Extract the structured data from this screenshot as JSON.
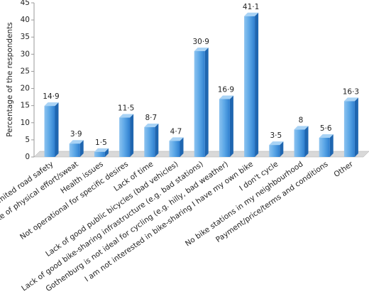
{
  "chart_data": {
    "type": "bar3d",
    "ylabel": "Percentage of the respondents",
    "categories": [
      "Limited road safety",
      "Dislike of physical effort/sweat",
      "Health issues",
      "Not operational for specific desires",
      "Lack of time",
      "Lack of good public bicycles (bad vehicles)",
      "Lack of good bike-sharing infrastructure (e.g. bad stations)",
      "Gothenburg is not ideal for cycling (e.g. hilly, bad weather)",
      "I am not interested in bike-sharing I have my own bike",
      "I don't cycle",
      "No bike stations in my neighbourhood",
      "Payment/price/terms and conditions",
      "Other"
    ],
    "values": [
      14.9,
      3.9,
      1.5,
      11.5,
      8.7,
      4.7,
      30.9,
      16.9,
      41.1,
      3.5,
      8,
      5.6,
      16.3
    ],
    "value_labels": [
      "14·9",
      "3·9",
      "1·5",
      "11·5",
      "8·7",
      "4·7",
      "30·9",
      "16·9",
      "41·1",
      "3·5",
      "8",
      "5·6",
      "16·3"
    ],
    "color": "#3a8fd6",
    "ylim": [
      0,
      45
    ],
    "yticks": [
      0,
      5,
      10,
      15,
      20,
      25,
      30,
      35,
      40,
      45
    ]
  }
}
